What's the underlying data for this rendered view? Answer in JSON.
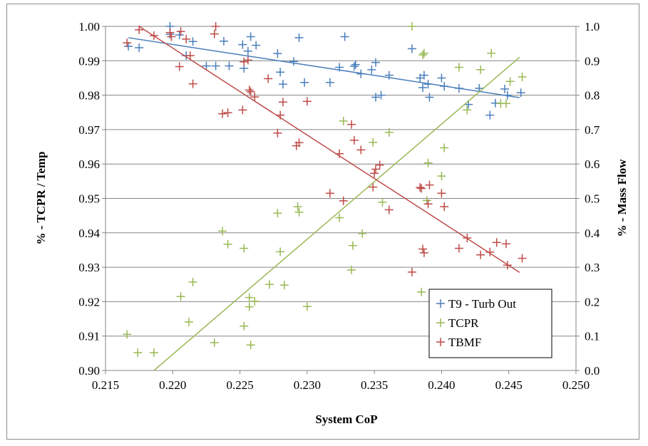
{
  "chart_data": {
    "type": "scatter",
    "xlabel": "System CoP",
    "ylabel_left": "% - TCPR / Temp",
    "ylabel_right": "% - Mass Flow",
    "xlim": [
      0.215,
      0.25
    ],
    "ylim_left": [
      0.9,
      1.0
    ],
    "ylim_right": [
      0.0,
      1.0
    ],
    "x_ticks": [
      "0.215",
      "0.220",
      "0.225",
      "0.230",
      "0.235",
      "0.240",
      "0.245",
      "0.250"
    ],
    "y_ticks_left": [
      "0.90",
      "0.91",
      "0.92",
      "0.93",
      "0.94",
      "0.95",
      "0.96",
      "0.97",
      "0.98",
      "0.99",
      "1.00"
    ],
    "y_ticks_right": [
      "0.0",
      "0.1",
      "0.2",
      "0.3",
      "0.4",
      "0.5",
      "0.6",
      "0.7",
      "0.8",
      "0.9",
      "1.0"
    ],
    "grid": "horizontal",
    "legend_position": "bottom-right",
    "series": [
      {
        "name": "T9 - Turb Out",
        "color": "#4a7ebb",
        "axis": "left",
        "marker": "plus",
        "trendline": [
          [
            0.2167,
            0.9967
          ],
          [
            0.2458,
            0.9793
          ]
        ],
        "points": [
          [
            0.2167,
            0.9942
          ],
          [
            0.2175,
            0.9938
          ],
          [
            0.2198,
            1.0
          ],
          [
            0.2198,
            0.9977
          ],
          [
            0.2205,
            0.9975
          ],
          [
            0.221,
            0.9915
          ],
          [
            0.2215,
            0.9956
          ],
          [
            0.2225,
            0.9885
          ],
          [
            0.2232,
            0.9885
          ],
          [
            0.2238,
            0.9957
          ],
          [
            0.2242,
            0.9885
          ],
          [
            0.2252,
            0.9947
          ],
          [
            0.2253,
            0.9878
          ],
          [
            0.2256,
            0.9928
          ],
          [
            0.2258,
            0.997
          ],
          [
            0.2262,
            0.9945
          ],
          [
            0.2278,
            0.9921
          ],
          [
            0.228,
            0.9867
          ],
          [
            0.2282,
            0.9832
          ],
          [
            0.229,
            0.9898
          ],
          [
            0.2294,
            0.9967
          ],
          [
            0.2298,
            0.9837
          ],
          [
            0.2317,
            0.9837
          ],
          [
            0.2324,
            0.9881
          ],
          [
            0.2328,
            0.997
          ],
          [
            0.2335,
            0.9884
          ],
          [
            0.2336,
            0.9889
          ],
          [
            0.234,
            0.9862
          ],
          [
            0.2348,
            0.9874
          ],
          [
            0.2351,
            0.9895
          ],
          [
            0.2351,
            0.9794
          ],
          [
            0.2355,
            0.98
          ],
          [
            0.2361,
            0.9858
          ],
          [
            0.2378,
            0.9935
          ],
          [
            0.2384,
            0.985
          ],
          [
            0.2386,
            0.9822
          ],
          [
            0.2387,
            0.9858
          ],
          [
            0.239,
            0.9832
          ],
          [
            0.2391,
            0.9794
          ],
          [
            0.24,
            0.985
          ],
          [
            0.2402,
            0.9826
          ],
          [
            0.2413,
            0.982
          ],
          [
            0.242,
            0.9773
          ],
          [
            0.2428,
            0.982
          ],
          [
            0.2436,
            0.9742
          ],
          [
            0.244,
            0.9777
          ],
          [
            0.2447,
            0.9818
          ],
          [
            0.2449,
            0.98
          ],
          [
            0.2459,
            0.9807
          ]
        ]
      },
      {
        "name": "TCPR",
        "color": "#98b954",
        "axis": "left",
        "marker": "plus",
        "trendline": [
          [
            0.2186,
            0.9
          ],
          [
            0.2458,
            0.991
          ]
        ],
        "points": [
          [
            0.2166,
            0.9105
          ],
          [
            0.2174,
            0.9052
          ],
          [
            0.2186,
            0.9052
          ],
          [
            0.2206,
            0.9215
          ],
          [
            0.2212,
            0.9141
          ],
          [
            0.2215,
            0.9257
          ],
          [
            0.2231,
            0.9081
          ],
          [
            0.2237,
            0.9405
          ],
          [
            0.2241,
            0.9367
          ],
          [
            0.2253,
            0.9355
          ],
          [
            0.2253,
            0.9129
          ],
          [
            0.2257,
            0.9212
          ],
          [
            0.2257,
            0.9185
          ],
          [
            0.2258,
            0.9074
          ],
          [
            0.2261,
            0.9201
          ],
          [
            0.2272,
            0.925
          ],
          [
            0.2278,
            0.9457
          ],
          [
            0.228,
            0.9345
          ],
          [
            0.2283,
            0.9248
          ],
          [
            0.2293,
            0.9476
          ],
          [
            0.2294,
            0.946
          ],
          [
            0.23,
            0.9186
          ],
          [
            0.2324,
            0.9444
          ],
          [
            0.2327,
            0.9725
          ],
          [
            0.2333,
            0.9292
          ],
          [
            0.2334,
            0.9363
          ],
          [
            0.2341,
            0.9398
          ],
          [
            0.2349,
            0.9663
          ],
          [
            0.2356,
            0.9489
          ],
          [
            0.2361,
            0.9692
          ],
          [
            0.2378,
            1.0
          ],
          [
            0.2385,
            0.9228
          ],
          [
            0.2386,
            0.9917
          ],
          [
            0.2387,
            0.9922
          ],
          [
            0.2389,
            0.9494
          ],
          [
            0.239,
            0.9603
          ],
          [
            0.24,
            0.9565
          ],
          [
            0.2402,
            0.9647
          ],
          [
            0.2413,
            0.9881
          ],
          [
            0.2419,
            0.9757
          ],
          [
            0.2429,
            0.9874
          ],
          [
            0.2437,
            0.9922
          ],
          [
            0.2444,
            0.9776
          ],
          [
            0.2448,
            0.9776
          ],
          [
            0.2451,
            0.984
          ],
          [
            0.246,
            0.9853
          ]
        ]
      },
      {
        "name": "TBMF",
        "color": "#be4b48",
        "axis": "left",
        "marker": "plus",
        "trendline": [
          [
            0.2175,
            1.0
          ],
          [
            0.2458,
            0.9285
          ]
        ],
        "points": [
          [
            0.2166,
            0.9952
          ],
          [
            0.2175,
            0.999
          ],
          [
            0.2186,
            0.9973
          ],
          [
            0.2198,
            0.9982
          ],
          [
            0.2199,
            0.997
          ],
          [
            0.2205,
            0.9883
          ],
          [
            0.2206,
            0.9985
          ],
          [
            0.221,
            0.9963
          ],
          [
            0.2213,
            0.9915
          ],
          [
            0.2215,
            0.9833
          ],
          [
            0.2231,
            0.9978
          ],
          [
            0.2232,
            1.0
          ],
          [
            0.2237,
            0.9746
          ],
          [
            0.2241,
            0.9749
          ],
          [
            0.2252,
            0.9757
          ],
          [
            0.2253,
            0.9897
          ],
          [
            0.2256,
            0.9902
          ],
          [
            0.2257,
            0.9815
          ],
          [
            0.2258,
            0.981
          ],
          [
            0.2261,
            0.9795
          ],
          [
            0.2271,
            0.9848
          ],
          [
            0.2278,
            0.969
          ],
          [
            0.228,
            0.9742
          ],
          [
            0.2282,
            0.978
          ],
          [
            0.2292,
            0.9653
          ],
          [
            0.2294,
            0.9662
          ],
          [
            0.23,
            0.9782
          ],
          [
            0.2317,
            0.9515
          ],
          [
            0.2324,
            0.963
          ],
          [
            0.2327,
            0.9493
          ],
          [
            0.2333,
            0.9715
          ],
          [
            0.2335,
            0.9669
          ],
          [
            0.234,
            0.9641
          ],
          [
            0.2349,
            0.9533
          ],
          [
            0.235,
            0.9573
          ],
          [
            0.2351,
            0.9585
          ],
          [
            0.2354,
            0.9597
          ],
          [
            0.2361,
            0.9467
          ],
          [
            0.2378,
            0.9286
          ],
          [
            0.2384,
            0.9532
          ],
          [
            0.2385,
            0.9529
          ],
          [
            0.2386,
            0.9353
          ],
          [
            0.2387,
            0.9342
          ],
          [
            0.239,
            0.9484
          ],
          [
            0.2391,
            0.9539
          ],
          [
            0.24,
            0.9515
          ],
          [
            0.2402,
            0.9476
          ],
          [
            0.2413,
            0.9355
          ],
          [
            0.2419,
            0.9385
          ],
          [
            0.2429,
            0.9336
          ],
          [
            0.2436,
            0.9344
          ],
          [
            0.2441,
            0.9372
          ],
          [
            0.2448,
            0.9368
          ],
          [
            0.2449,
            0.9306
          ],
          [
            0.246,
            0.9326
          ]
        ]
      }
    ]
  }
}
